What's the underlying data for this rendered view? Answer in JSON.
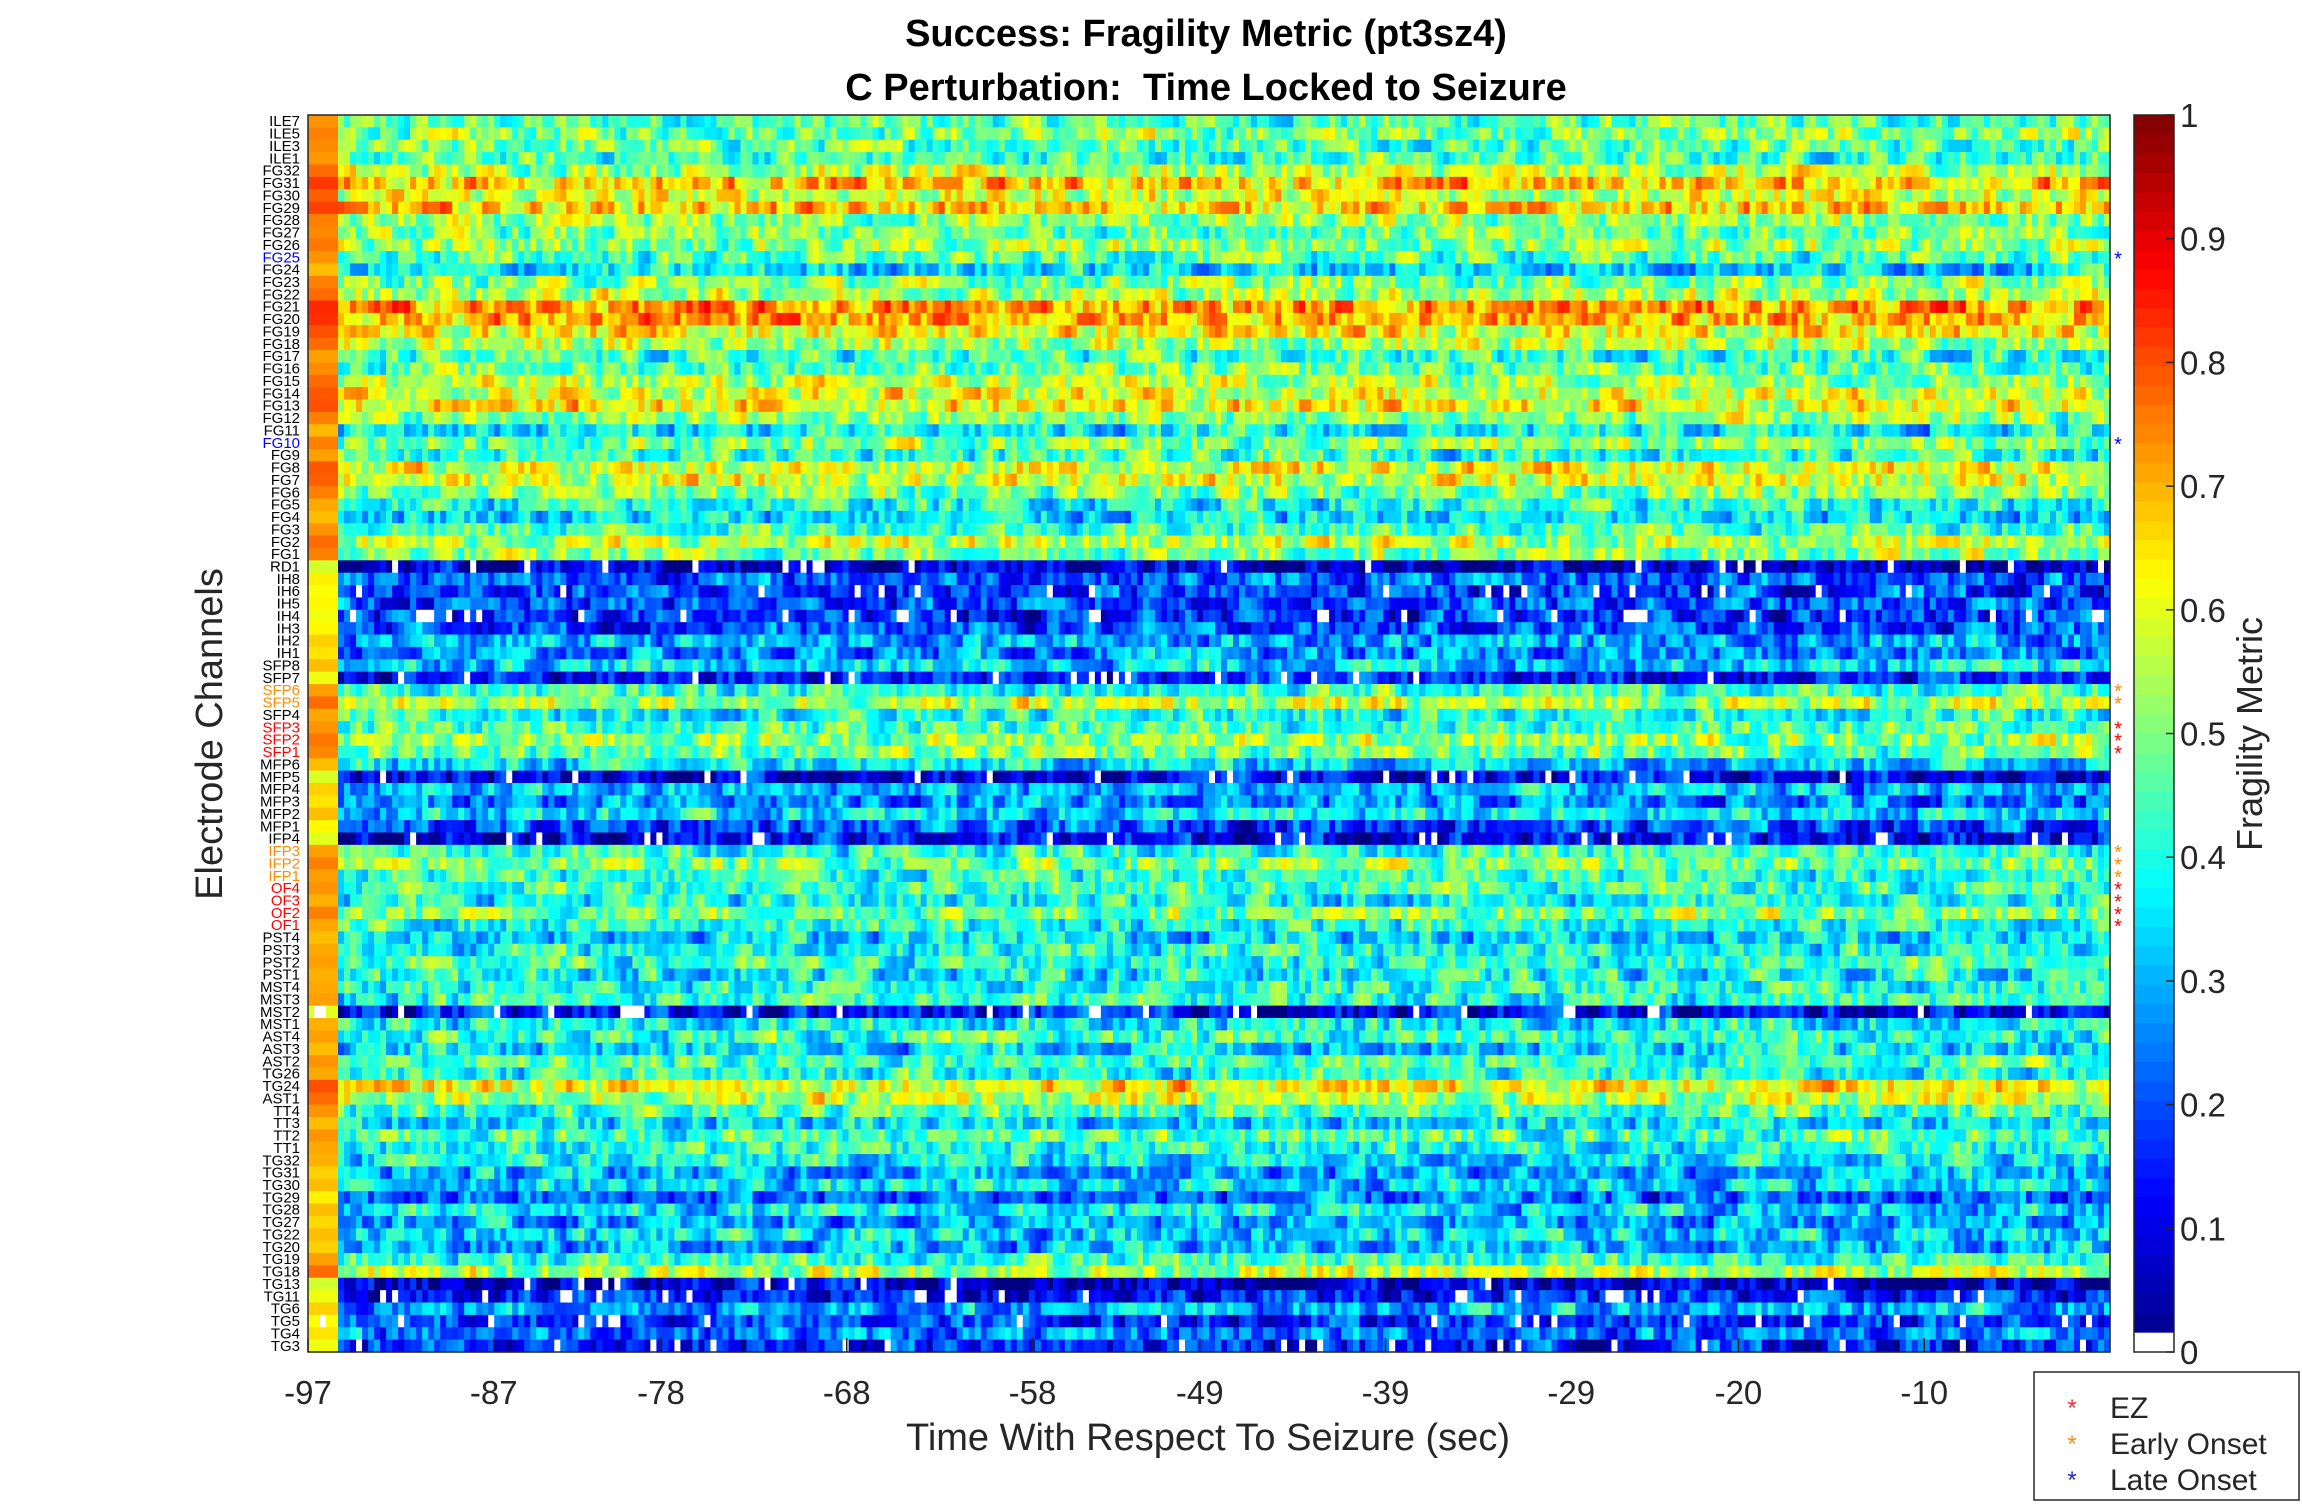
{
  "chart_data": {
    "type": "heatmap",
    "title": "Success: Fragility Metric (pt3sz4)",
    "subtitle": "C Perturbation:  Time Locked to Seizure",
    "xlabel": "Time With Respect To Seizure (sec)",
    "ylabel": "Electrode Channels",
    "xlim": [
      -97,
      0
    ],
    "x_ticks": [
      "-97",
      "-87",
      "-78",
      "-68",
      "-58",
      "-49",
      "-39",
      "-29",
      "-20",
      "-10"
    ],
    "colorbar": {
      "label": "Fragility Metric",
      "range": [
        0,
        1
      ],
      "ticks": [
        "0",
        "0.1",
        "0.2",
        "0.3",
        "0.4",
        "0.5",
        "0.6",
        "0.7",
        "0.8",
        "0.9",
        "1"
      ],
      "colormap": "jet"
    },
    "channels": [
      {
        "name": "ILE7",
        "mean": 0.45,
        "group": null
      },
      {
        "name": "ILE5",
        "mean": 0.5,
        "group": null
      },
      {
        "name": "ILE3",
        "mean": 0.47,
        "group": null
      },
      {
        "name": "ILE1",
        "mean": 0.44,
        "group": null
      },
      {
        "name": "FG32",
        "mean": 0.55,
        "group": null
      },
      {
        "name": "FG31",
        "mean": 0.68,
        "group": null
      },
      {
        "name": "FG30",
        "mean": 0.58,
        "group": null
      },
      {
        "name": "FG29",
        "mean": 0.66,
        "group": null
      },
      {
        "name": "FG28",
        "mean": 0.5,
        "group": null
      },
      {
        "name": "FG27",
        "mean": 0.48,
        "group": null
      },
      {
        "name": "FG26",
        "mean": 0.52,
        "group": null
      },
      {
        "name": "FG25",
        "mean": 0.45,
        "group": "late"
      },
      {
        "name": "FG24",
        "mean": 0.35,
        "group": null
      },
      {
        "name": "FG23",
        "mean": 0.5,
        "group": null
      },
      {
        "name": "FG22",
        "mean": 0.55,
        "group": null
      },
      {
        "name": "FG21",
        "mean": 0.72,
        "group": null
      },
      {
        "name": "FG20",
        "mean": 0.7,
        "group": null
      },
      {
        "name": "FG19",
        "mean": 0.62,
        "group": null
      },
      {
        "name": "FG18",
        "mean": 0.55,
        "group": null
      },
      {
        "name": "FG17",
        "mean": 0.42,
        "group": null
      },
      {
        "name": "FG16",
        "mean": 0.47,
        "group": null
      },
      {
        "name": "FG15",
        "mean": 0.55,
        "group": null
      },
      {
        "name": "FG14",
        "mean": 0.6,
        "group": null
      },
      {
        "name": "FG13",
        "mean": 0.62,
        "group": null
      },
      {
        "name": "FG12",
        "mean": 0.5,
        "group": null
      },
      {
        "name": "FG11",
        "mean": 0.36,
        "group": null
      },
      {
        "name": "FG10",
        "mean": 0.5,
        "group": "late"
      },
      {
        "name": "FG9",
        "mean": 0.42,
        "group": null
      },
      {
        "name": "FG8",
        "mean": 0.6,
        "group": null
      },
      {
        "name": "FG7",
        "mean": 0.58,
        "group": null
      },
      {
        "name": "FG6",
        "mean": 0.5,
        "group": null
      },
      {
        "name": "FG5",
        "mean": 0.4,
        "group": null
      },
      {
        "name": "FG4",
        "mean": 0.35,
        "group": null
      },
      {
        "name": "FG3",
        "mean": 0.45,
        "group": null
      },
      {
        "name": "FG2",
        "mean": 0.55,
        "group": null
      },
      {
        "name": "FG1",
        "mean": 0.5,
        "group": null
      },
      {
        "name": "RD1",
        "mean": 0.08,
        "group": null
      },
      {
        "name": "IH8",
        "mean": 0.22,
        "group": null
      },
      {
        "name": "IH6",
        "mean": 0.18,
        "group": null
      },
      {
        "name": "IH5",
        "mean": 0.2,
        "group": null
      },
      {
        "name": "IH4",
        "mean": 0.16,
        "group": null
      },
      {
        "name": "IH3",
        "mean": 0.2,
        "group": null
      },
      {
        "name": "IH2",
        "mean": 0.3,
        "group": null
      },
      {
        "name": "IH1",
        "mean": 0.25,
        "group": null
      },
      {
        "name": "SFP8",
        "mean": 0.35,
        "group": null
      },
      {
        "name": "SFP7",
        "mean": 0.15,
        "group": null
      },
      {
        "name": "SFP6",
        "mean": 0.42,
        "group": "early"
      },
      {
        "name": "SFP5",
        "mean": 0.55,
        "group": "early"
      },
      {
        "name": "SFP4",
        "mean": 0.4,
        "group": null
      },
      {
        "name": "SFP3",
        "mean": 0.45,
        "group": "ez"
      },
      {
        "name": "SFP2",
        "mean": 0.52,
        "group": "ez"
      },
      {
        "name": "SFP1",
        "mean": 0.48,
        "group": "ez"
      },
      {
        "name": "MFP6",
        "mean": 0.35,
        "group": null
      },
      {
        "name": "MFP5",
        "mean": 0.1,
        "group": null
      },
      {
        "name": "MFP4",
        "mean": 0.3,
        "group": null
      },
      {
        "name": "MFP3",
        "mean": 0.25,
        "group": null
      },
      {
        "name": "MFP2",
        "mean": 0.35,
        "group": null
      },
      {
        "name": "MFP1",
        "mean": 0.2,
        "group": null
      },
      {
        "name": "IFP4",
        "mean": 0.12,
        "group": null
      },
      {
        "name": "IFP3",
        "mean": 0.42,
        "group": "early"
      },
      {
        "name": "IFP2",
        "mean": 0.5,
        "group": "early"
      },
      {
        "name": "IFP1",
        "mean": 0.42,
        "group": "early"
      },
      {
        "name": "OF4",
        "mean": 0.45,
        "group": "ez"
      },
      {
        "name": "OF3",
        "mean": 0.38,
        "group": "ez"
      },
      {
        "name": "OF2",
        "mean": 0.5,
        "group": "ez"
      },
      {
        "name": "OF1",
        "mean": 0.4,
        "group": "ez"
      },
      {
        "name": "PST4",
        "mean": 0.35,
        "group": null
      },
      {
        "name": "PST3",
        "mean": 0.4,
        "group": null
      },
      {
        "name": "PST2",
        "mean": 0.42,
        "group": null
      },
      {
        "name": "PST1",
        "mean": 0.38,
        "group": null
      },
      {
        "name": "MST4",
        "mean": 0.4,
        "group": null
      },
      {
        "name": "MST3",
        "mean": 0.42,
        "group": null
      },
      {
        "name": "MST2",
        "mean": 0.12,
        "group": null
      },
      {
        "name": "MST1",
        "mean": 0.38,
        "group": null
      },
      {
        "name": "AST4",
        "mean": 0.42,
        "group": null
      },
      {
        "name": "AST3",
        "mean": 0.35,
        "group": null
      },
      {
        "name": "AST2",
        "mean": 0.45,
        "group": null
      },
      {
        "name": "TG26",
        "mean": 0.4,
        "group": null
      },
      {
        "name": "TG24",
        "mean": 0.62,
        "group": null
      },
      {
        "name": "AST1",
        "mean": 0.55,
        "group": null
      },
      {
        "name": "TT4",
        "mean": 0.45,
        "group": null
      },
      {
        "name": "TT3",
        "mean": 0.35,
        "group": null
      },
      {
        "name": "TT2",
        "mean": 0.45,
        "group": null
      },
      {
        "name": "TT1",
        "mean": 0.4,
        "group": null
      },
      {
        "name": "TG32",
        "mean": 0.38,
        "group": null
      },
      {
        "name": "TG31",
        "mean": 0.3,
        "group": null
      },
      {
        "name": "TG30",
        "mean": 0.35,
        "group": null
      },
      {
        "name": "TG29",
        "mean": 0.22,
        "group": null
      },
      {
        "name": "TG28",
        "mean": 0.35,
        "group": null
      },
      {
        "name": "TG27",
        "mean": 0.28,
        "group": null
      },
      {
        "name": "TG22",
        "mean": 0.35,
        "group": null
      },
      {
        "name": "TG20",
        "mean": 0.3,
        "group": null
      },
      {
        "name": "TG19",
        "mean": 0.42,
        "group": null
      },
      {
        "name": "TG18",
        "mean": 0.55,
        "group": null
      },
      {
        "name": "TG13",
        "mean": 0.08,
        "group": null
      },
      {
        "name": "TG11",
        "mean": 0.15,
        "group": null
      },
      {
        "name": "TG6",
        "mean": 0.3,
        "group": null
      },
      {
        "name": "TG5",
        "mean": 0.18,
        "group": null
      },
      {
        "name": "TG4",
        "mean": 0.25,
        "group": null
      },
      {
        "name": "TG3",
        "mean": 0.15,
        "group": null
      }
    ],
    "legend": {
      "position": "bottom-right, outside plot",
      "entries": [
        {
          "label": "EZ",
          "color": "#ff2a2a",
          "group": "ez"
        },
        {
          "label": "Early Onset",
          "color": "#f28c28",
          "group": "early"
        },
        {
          "label": "Late Onset",
          "color": "#2323d8",
          "group": "late"
        }
      ]
    },
    "label_colors": {
      "ez": "#ff0000",
      "early": "#ff8c00",
      "late": "#0000ff",
      "default": "#000000"
    }
  }
}
